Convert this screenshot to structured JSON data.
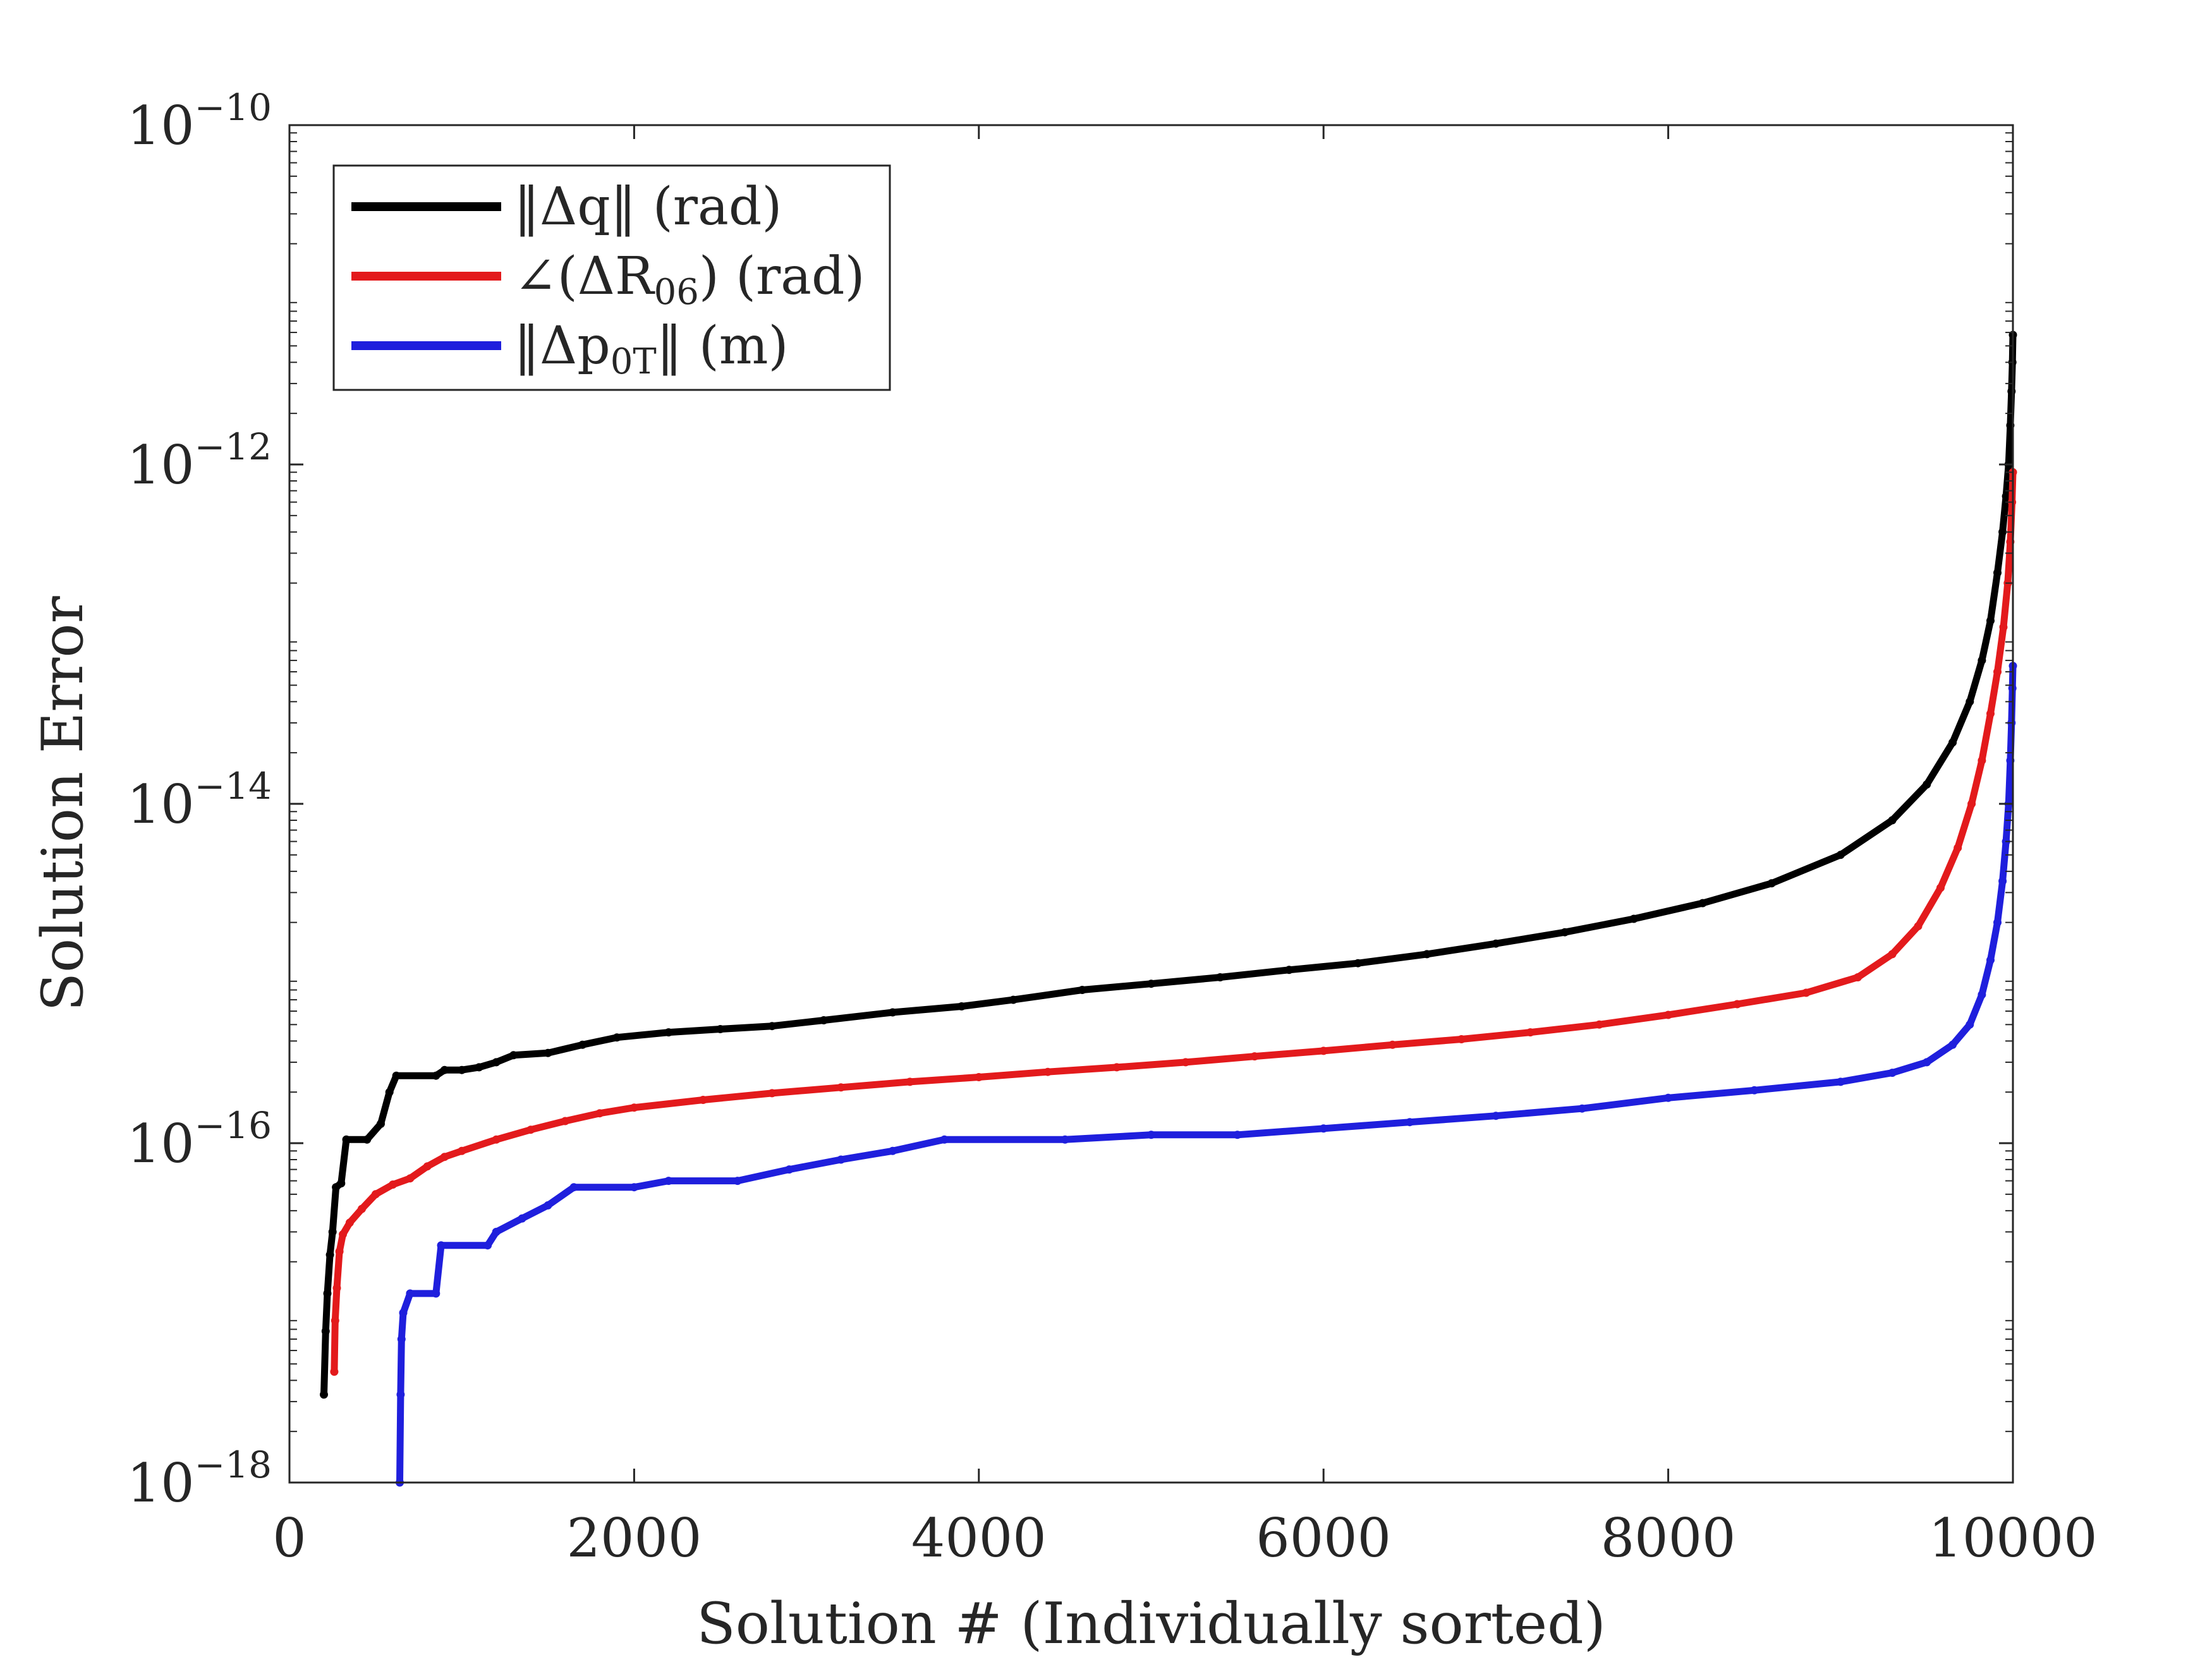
{
  "chart_data": {
    "type": "scatter",
    "xlabel": "Solution # (Individually sorted)",
    "ylabel": "Solution Error",
    "xlim": [
      0,
      10000
    ],
    "ylim": [
      1e-18,
      1e-10
    ],
    "yscale": "log",
    "x_ticks": [
      0,
      2000,
      4000,
      6000,
      8000,
      10000
    ],
    "x_tick_labels": [
      "0",
      "2000",
      "4000",
      "6000",
      "8000",
      "10000"
    ],
    "y_ticks": [
      {
        "base": "10",
        "exp": "−10"
      },
      {
        "base": "10",
        "exp": "−12"
      },
      {
        "base": "10",
        "exp": "−14"
      },
      {
        "base": "10",
        "exp": "−16"
      },
      {
        "base": "10",
        "exp": "−18"
      }
    ],
    "grid": false,
    "legend_position": "top-left",
    "legend": [
      {
        "main": "‖Δq‖ (rad)",
        "sub": ""
      },
      {
        "main": "∠(ΔR",
        "sub": "06",
        "after": ") (rad)"
      },
      {
        "main": "‖Δp",
        "sub": "0T",
        "after": "‖ (m)"
      }
    ],
    "series": [
      {
        "color": "#000000",
        "points": [
          [
            200,
            3.3e-18
          ],
          [
            210,
            7.8e-18
          ],
          [
            220,
            1.3e-17
          ],
          [
            235,
            2.2e-17
          ],
          [
            250,
            3e-17
          ],
          [
            270,
            5.5e-17
          ],
          [
            300,
            5.8e-17
          ],
          [
            330,
            1.05e-16
          ],
          [
            450,
            1.05e-16
          ],
          [
            530,
            1.3e-16
          ],
          [
            580,
            2e-16
          ],
          [
            620,
            2.5e-16
          ],
          [
            850,
            2.5e-16
          ],
          [
            900,
            2.7e-16
          ],
          [
            1000,
            2.7e-16
          ],
          [
            1100,
            2.8e-16
          ],
          [
            1200,
            3e-16
          ],
          [
            1300,
            3.3e-16
          ],
          [
            1500,
            3.4e-16
          ],
          [
            1700,
            3.8e-16
          ],
          [
            1900,
            4.2e-16
          ],
          [
            2200,
            4.5e-16
          ],
          [
            2500,
            4.7e-16
          ],
          [
            2800,
            4.9e-16
          ],
          [
            3100,
            5.3e-16
          ],
          [
            3500,
            5.9e-16
          ],
          [
            3900,
            6.4e-16
          ],
          [
            4200,
            7e-16
          ],
          [
            4600,
            8e-16
          ],
          [
            5000,
            8.7e-16
          ],
          [
            5400,
            9.5e-16
          ],
          [
            5800,
            1.05e-15
          ],
          [
            6200,
            1.15e-15
          ],
          [
            6600,
            1.3e-15
          ],
          [
            7000,
            1.5e-15
          ],
          [
            7400,
            1.75e-15
          ],
          [
            7800,
            2.1e-15
          ],
          [
            8200,
            2.6e-15
          ],
          [
            8600,
            3.4e-15
          ],
          [
            9000,
            5e-15
          ],
          [
            9300,
            8e-15
          ],
          [
            9500,
            1.3e-14
          ],
          [
            9650,
            2.3e-14
          ],
          [
            9750,
            4e-14
          ],
          [
            9820,
            7e-14
          ],
          [
            9870,
            1.2e-13
          ],
          [
            9910,
            2.3e-13
          ],
          [
            9940,
            4e-13
          ],
          [
            9960,
            6.5e-13
          ],
          [
            9975,
            1e-12
          ],
          [
            9985,
            1.7e-12
          ],
          [
            9992,
            2.7e-12
          ],
          [
            9997,
            4e-12
          ],
          [
            10000,
            5.8e-12
          ]
        ]
      },
      {
        "color": "#e31a1c",
        "points": [
          [
            260,
            4.5e-18
          ],
          [
            265,
            9e-18
          ],
          [
            275,
            1.4e-17
          ],
          [
            290,
            2.3e-17
          ],
          [
            310,
            2.9e-17
          ],
          [
            350,
            3.4e-17
          ],
          [
            420,
            4.1e-17
          ],
          [
            500,
            5e-17
          ],
          [
            600,
            5.7e-17
          ],
          [
            700,
            6.2e-17
          ],
          [
            800,
            7.3e-17
          ],
          [
            900,
            8.3e-17
          ],
          [
            1000,
            9e-17
          ],
          [
            1200,
            1.05e-16
          ],
          [
            1400,
            1.2e-16
          ],
          [
            1600,
            1.35e-16
          ],
          [
            1800,
            1.5e-16
          ],
          [
            2000,
            1.62e-16
          ],
          [
            2400,
            1.8e-16
          ],
          [
            2800,
            1.97e-16
          ],
          [
            3200,
            2.13e-16
          ],
          [
            3600,
            2.3e-16
          ],
          [
            4000,
            2.45e-16
          ],
          [
            4400,
            2.63e-16
          ],
          [
            4800,
            2.8e-16
          ],
          [
            5200,
            3e-16
          ],
          [
            5600,
            3.25e-16
          ],
          [
            6000,
            3.5e-16
          ],
          [
            6400,
            3.8e-16
          ],
          [
            6800,
            4.1e-16
          ],
          [
            7200,
            4.5e-16
          ],
          [
            7600,
            5e-16
          ],
          [
            8000,
            5.7e-16
          ],
          [
            8400,
            6.6e-16
          ],
          [
            8800,
            7.7e-16
          ],
          [
            9100,
            9.5e-16
          ],
          [
            9300,
            1.3e-15
          ],
          [
            9450,
            1.9e-15
          ],
          [
            9580,
            3.2e-15
          ],
          [
            9680,
            5.5e-15
          ],
          [
            9760,
            1e-14
          ],
          [
            9820,
            1.8e-14
          ],
          [
            9870,
            3.4e-14
          ],
          [
            9910,
            6e-14
          ],
          [
            9945,
            1.1e-13
          ],
          [
            9970,
            2e-13
          ],
          [
            9985,
            3.5e-13
          ],
          [
            9995,
            6e-13
          ],
          [
            10000,
            9e-13
          ]
        ]
      },
      {
        "color": "#1f1fdd",
        "points": [
          [
            640,
            1e-18
          ],
          [
            645,
            3.3e-18
          ],
          [
            650,
            7e-18
          ],
          [
            660,
            1e-17
          ],
          [
            700,
            1.3e-17
          ],
          [
            850,
            1.3e-17
          ],
          [
            880,
            2.5e-17
          ],
          [
            1150,
            2.5e-17
          ],
          [
            1200,
            3e-17
          ],
          [
            1350,
            3.6e-17
          ],
          [
            1500,
            4.3e-17
          ],
          [
            1650,
            5.5e-17
          ],
          [
            2000,
            5.5e-17
          ],
          [
            2200,
            6e-17
          ],
          [
            2600,
            6e-17
          ],
          [
            2900,
            7e-17
          ],
          [
            3200,
            8e-17
          ],
          [
            3500,
            9e-17
          ],
          [
            3800,
            1.05e-16
          ],
          [
            4500,
            1.05e-16
          ],
          [
            5000,
            1.12e-16
          ],
          [
            5500,
            1.12e-16
          ],
          [
            6000,
            1.22e-16
          ],
          [
            6500,
            1.33e-16
          ],
          [
            7000,
            1.45e-16
          ],
          [
            7500,
            1.6e-16
          ],
          [
            8000,
            1.85e-16
          ],
          [
            8500,
            2.05e-16
          ],
          [
            9000,
            2.3e-16
          ],
          [
            9300,
            2.6e-16
          ],
          [
            9500,
            3e-16
          ],
          [
            9650,
            3.8e-16
          ],
          [
            9750,
            5e-16
          ],
          [
            9820,
            7.5e-16
          ],
          [
            9870,
            1.2e-15
          ],
          [
            9910,
            2e-15
          ],
          [
            9940,
            3.5e-15
          ],
          [
            9960,
            6e-15
          ],
          [
            9975,
            1e-14
          ],
          [
            9985,
            1.8e-14
          ],
          [
            9992,
            3e-14
          ],
          [
            9997,
            4.8e-14
          ],
          [
            10000,
            6.5e-14
          ]
        ]
      }
    ]
  }
}
